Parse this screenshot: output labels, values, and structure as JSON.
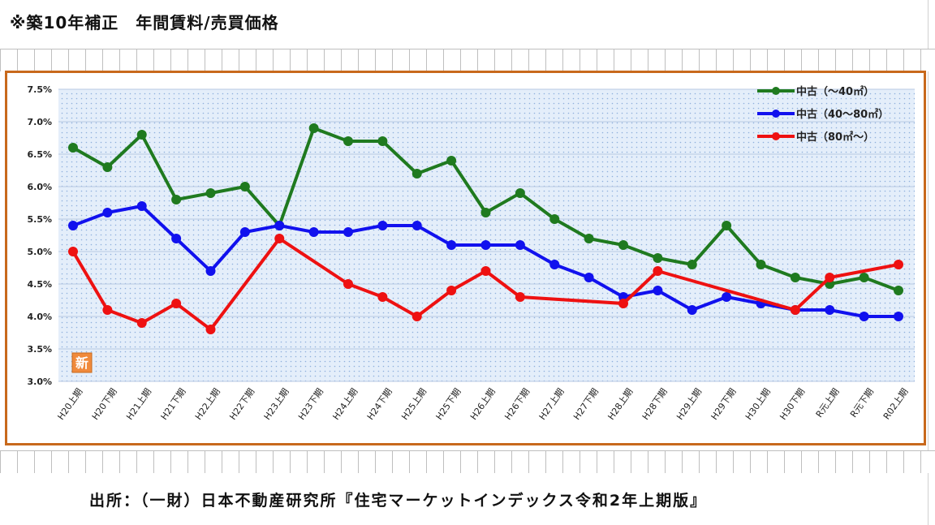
{
  "page": {
    "title": "※築10年補正　年間賃料/売買価格",
    "source": "出所：（一財）日本不動産研究所『住宅マーケットインデックス令和2年上期版』",
    "badge": "新"
  },
  "colors": {
    "frame": "#c8691c",
    "plot_bg": "#dce8f8",
    "series": [
      "#1f7a1f",
      "#1111ee",
      "#ee1111"
    ]
  },
  "chart_data": {
    "type": "line",
    "ylim": [
      3.0,
      7.5
    ],
    "yticks": [
      "3.0%",
      "3.5%",
      "4.0%",
      "4.5%",
      "5.0%",
      "5.5%",
      "6.0%",
      "6.5%",
      "7.0%",
      "7.5%"
    ],
    "ytick_values": [
      3.0,
      3.5,
      4.0,
      4.5,
      5.0,
      5.5,
      6.0,
      6.5,
      7.0,
      7.5
    ],
    "categories": [
      "H20上期",
      "H20下期",
      "H21上期",
      "H21下期",
      "H22上期",
      "H22下期",
      "H23上期",
      "H23下期",
      "H24上期",
      "H24下期",
      "H25上期",
      "H25下期",
      "H26上期",
      "H26下期",
      "H27上期",
      "H27下期",
      "H28上期",
      "H28下期",
      "H29上期",
      "H29下期",
      "H30上期",
      "H30下期",
      "R元上期",
      "R元下期",
      "R02上期"
    ],
    "legend_position": "top-right",
    "series": [
      {
        "name": "中古（～40㎡）",
        "values": [
          6.6,
          6.3,
          6.8,
          5.8,
          5.9,
          6.0,
          5.4,
          6.9,
          6.7,
          6.7,
          6.2,
          6.4,
          5.6,
          5.9,
          5.5,
          5.2,
          5.1,
          4.9,
          4.8,
          5.4,
          4.8,
          4.6,
          4.5,
          4.6,
          4.4
        ]
      },
      {
        "name": "中古（40～80㎡）",
        "values": [
          5.4,
          5.6,
          5.7,
          5.2,
          4.7,
          5.3,
          5.4,
          5.3,
          5.3,
          5.4,
          5.4,
          5.1,
          5.1,
          5.1,
          4.8,
          4.6,
          4.3,
          4.4,
          4.1,
          4.3,
          4.2,
          4.1,
          4.1,
          4.0,
          4.0
        ]
      },
      {
        "name": "中古（80㎡～）",
        "values": [
          5.0,
          4.1,
          3.9,
          4.2,
          3.8,
          null,
          5.2,
          null,
          4.5,
          4.3,
          4.0,
          4.4,
          4.7,
          4.3,
          null,
          null,
          4.2,
          4.7,
          null,
          null,
          null,
          4.1,
          4.6,
          null,
          4.8
        ]
      }
    ]
  }
}
